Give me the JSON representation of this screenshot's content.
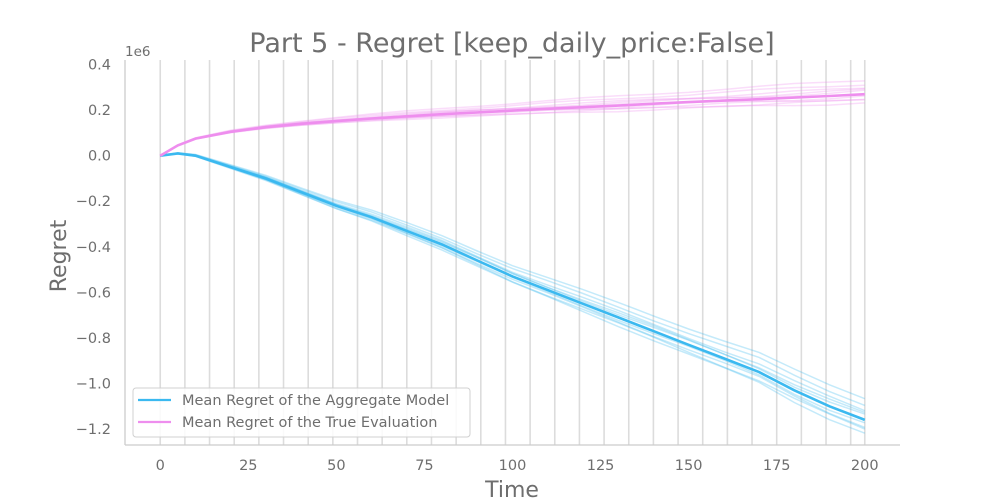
{
  "chart_data": {
    "type": "line",
    "title": "Part 5 - Regret [keep_daily_price:False]",
    "xlabel": "Time",
    "ylabel": "Regret",
    "y_scale_label": "1e6",
    "y_multiplier": 1000000,
    "xlim": [
      -10,
      210
    ],
    "ylim": [
      -1.27,
      0.42
    ],
    "x_ticks": [
      0,
      25,
      50,
      75,
      100,
      125,
      150,
      175,
      200
    ],
    "x_tick_labels": [
      "0",
      "25",
      "50",
      "75",
      "100",
      "125",
      "150",
      "175",
      "200"
    ],
    "y_ticks": [
      0.4,
      0.2,
      0.0,
      -0.2,
      -0.4,
      -0.6,
      -0.8,
      -1.0,
      -1.2
    ],
    "y_tick_labels": [
      "0.4",
      "0.2",
      "0.0",
      "−0.2",
      "−0.4",
      "−0.6",
      "−0.8",
      "−1.0",
      "−1.2"
    ],
    "vertical_gridlines_x": [
      0,
      7,
      14,
      21,
      28,
      35,
      42,
      49,
      56,
      63,
      70,
      77,
      84,
      91,
      98,
      105,
      112,
      119,
      126,
      133,
      140,
      147,
      154,
      161,
      168,
      175,
      182,
      189,
      196,
      200
    ],
    "legend_position": "lower-left",
    "series": [
      {
        "name": "Mean Regret of the Aggregate Model",
        "color": "#3bb9f0",
        "x": [
          0,
          5,
          10,
          20,
          30,
          40,
          50,
          60,
          70,
          80,
          90,
          100,
          110,
          120,
          130,
          140,
          150,
          160,
          170,
          180,
          190,
          200
        ],
        "y": [
          0.0,
          0.01,
          0.0,
          -0.05,
          -0.1,
          -0.16,
          -0.22,
          -0.27,
          -0.33,
          -0.39,
          -0.46,
          -0.53,
          -0.59,
          -0.65,
          -0.71,
          -0.77,
          -0.83,
          -0.89,
          -0.95,
          -1.03,
          -1.1,
          -1.16
        ],
        "replicate_offsets": [
          0.03,
          -0.02,
          0.015,
          -0.03,
          0.05,
          -0.01,
          0.02,
          0.07,
          -0.04
        ]
      },
      {
        "name": "Mean Regret of the True Evaluation",
        "color": "#ee8eee",
        "x": [
          0,
          5,
          10,
          20,
          30,
          40,
          50,
          60,
          70,
          80,
          90,
          100,
          110,
          120,
          130,
          140,
          150,
          160,
          170,
          180,
          190,
          200
        ],
        "y": [
          0.0,
          0.045,
          0.075,
          0.105,
          0.125,
          0.14,
          0.152,
          0.163,
          0.173,
          0.182,
          0.19,
          0.198,
          0.206,
          0.213,
          0.22,
          0.228,
          0.235,
          0.242,
          0.248,
          0.255,
          0.262,
          0.27
        ],
        "replicate_offsets": [
          0.03,
          -0.02,
          0.015,
          -0.03,
          0.05,
          -0.01,
          0.02,
          0.07,
          -0.04
        ]
      }
    ]
  }
}
